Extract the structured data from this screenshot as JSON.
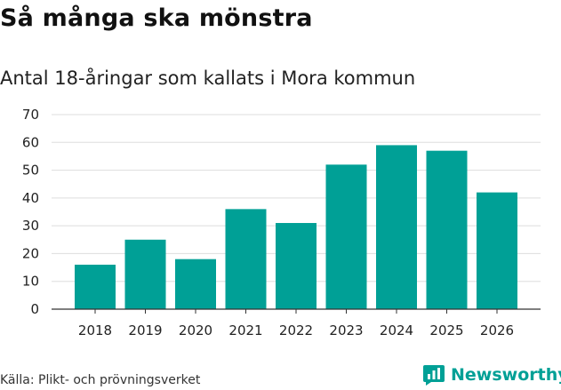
{
  "title": "Så många ska mönstra",
  "subtitle": "Antal 18-åringar som kallats i Mora kommun",
  "source": "Källa: Plikt- och prövningsverket",
  "brand": {
    "name": "Newsworthy",
    "icon": "newsworthy-logo-icon",
    "color": "#00a096"
  },
  "colors": {
    "bar": "#00a096",
    "grid": "#dddddd",
    "axis": "#333333"
  },
  "chart_data": {
    "type": "bar",
    "title": "Så många ska mönstra",
    "subtitle": "Antal 18-åringar som kallats i Mora kommun",
    "xlabel": "",
    "ylabel": "",
    "categories": [
      "2018",
      "2019",
      "2020",
      "2021",
      "2022",
      "2023",
      "2024",
      "2025",
      "2026"
    ],
    "values": [
      16,
      25,
      18,
      36,
      31,
      52,
      59,
      57,
      42
    ],
    "ylim": [
      0,
      70
    ],
    "yticks": [
      0,
      10,
      20,
      30,
      40,
      50,
      60,
      70
    ],
    "grid": true,
    "legend": "none"
  }
}
